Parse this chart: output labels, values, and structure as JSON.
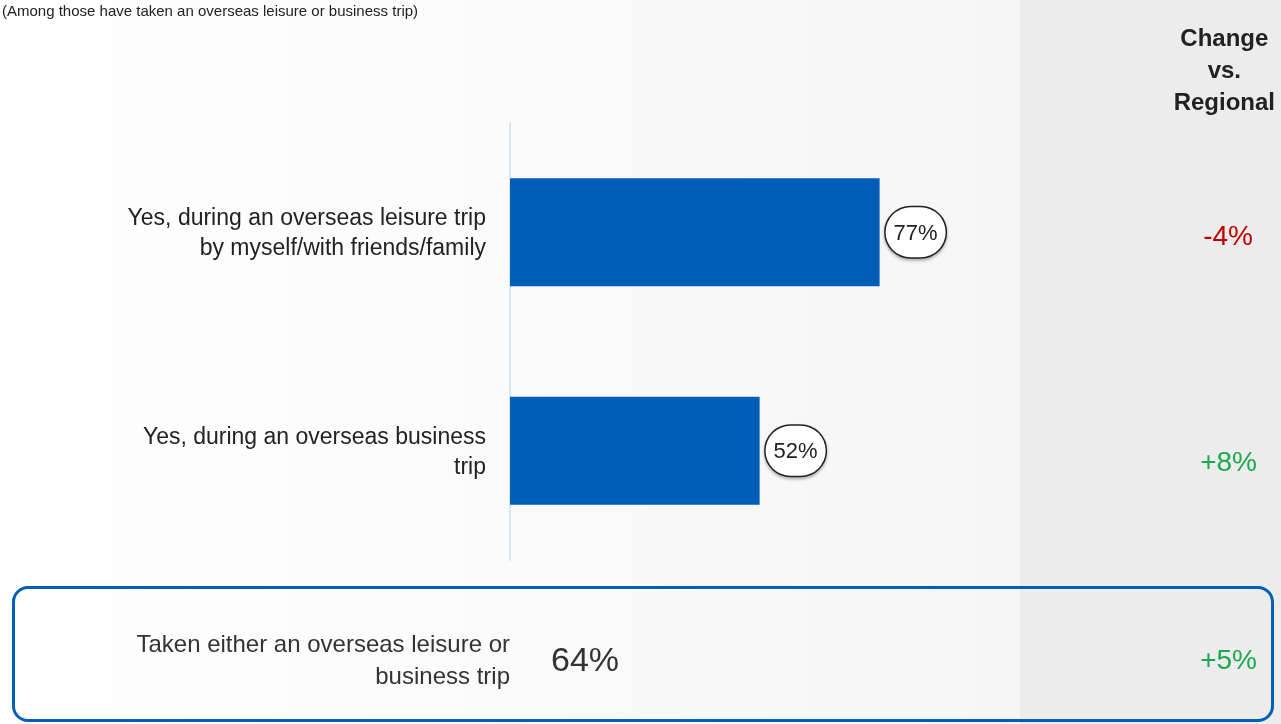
{
  "chart_data": {
    "type": "bar",
    "orientation": "horizontal",
    "subtitle": "(Among those have taken an overseas leisure or business trip)",
    "categories": [
      "Yes, during an overseas leisure trip\nby myself/with friends/family",
      "Yes, during an overseas business\ntrip"
    ],
    "values": [
      77,
      52
    ],
    "value_labels": [
      "77%",
      "52%"
    ],
    "color": "#005eb8",
    "annotations": [
      "Change\nvs.\nRegional",
      "-4%",
      "+8%",
      "Taken either an overseas leisure or\nbusiness trip",
      "64%",
      "+5%"
    ]
  }
}
